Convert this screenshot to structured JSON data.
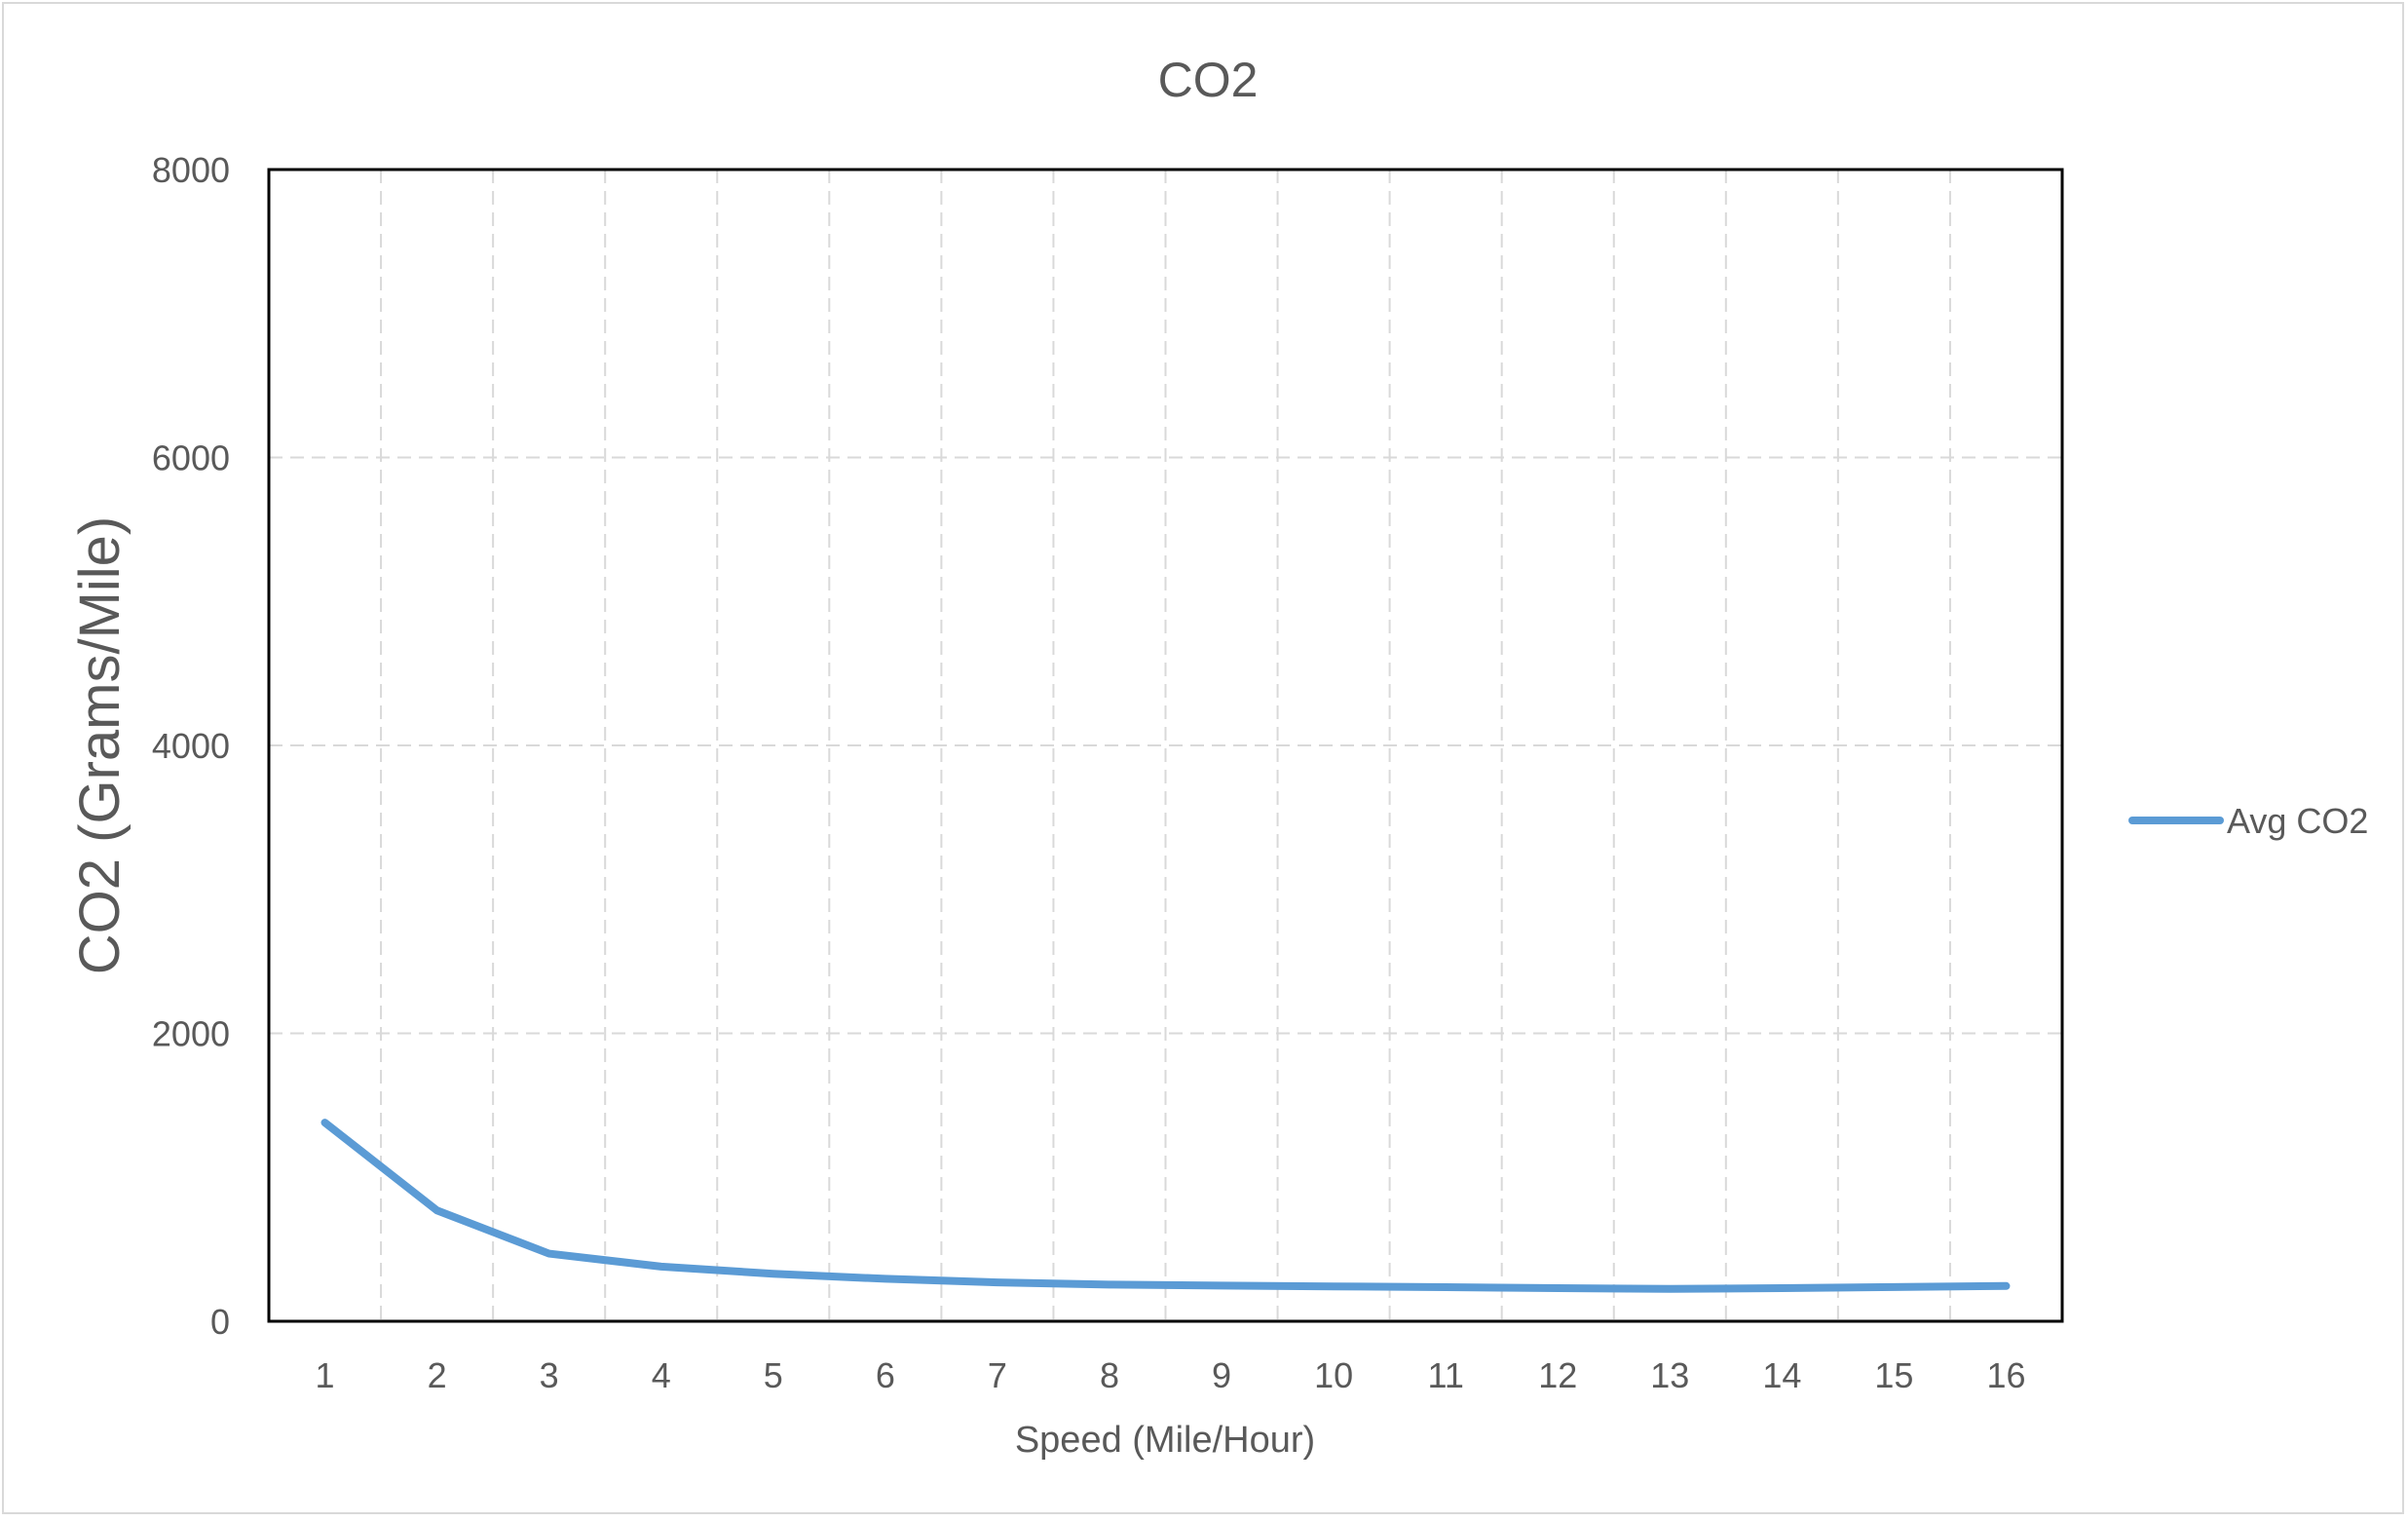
{
  "chart_data": {
    "type": "line",
    "title": "CO2",
    "xlabel": "Speed (Mile/Hour)",
    "ylabel": "CO2 (Grams/Mile)",
    "x": [
      1,
      2,
      3,
      4,
      5,
      6,
      7,
      8,
      9,
      10,
      11,
      12,
      13,
      14,
      15,
      16
    ],
    "series": [
      {
        "name": "Avg CO2",
        "color": "#5B9BD5",
        "values": [
          1380,
          770,
          470,
          380,
          330,
          295,
          270,
          255,
          248,
          242,
          237,
          230,
          225,
          230,
          238,
          245
        ]
      }
    ],
    "ylim": [
      0,
      8000
    ],
    "yticks": [
      0,
      2000,
      4000,
      6000,
      8000
    ],
    "grid": true,
    "grid_style": "dashed",
    "legend_position": "right"
  }
}
